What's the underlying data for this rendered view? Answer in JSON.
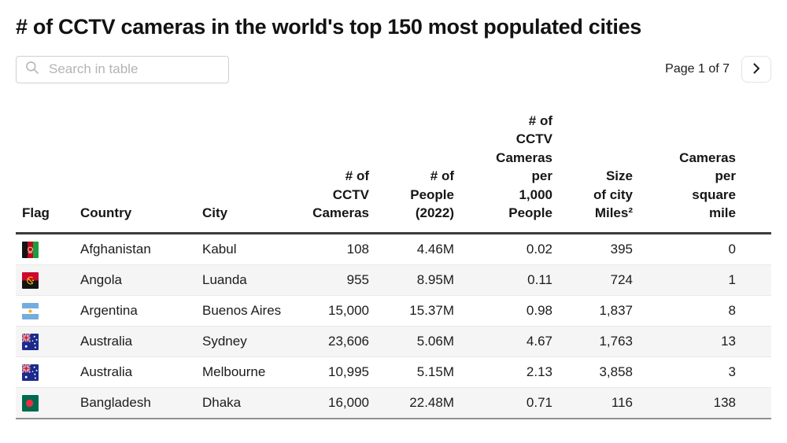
{
  "page": {
    "title": "# of CCTV cameras in the world's top 150 most populated cities",
    "search": {
      "placeholder": "Search in table",
      "value": ""
    },
    "pagination": {
      "label": "Page 1 of 7"
    }
  },
  "colors": {
    "row_stripe": "#f5f5f6",
    "header_rule": "#3b3b3b",
    "table_bottom_rule": "#8f8f8f"
  },
  "table": {
    "columns": [
      {
        "label": "Flag"
      },
      {
        "label": "Country"
      },
      {
        "label": "City"
      },
      {
        "label": "# of\nCCTV\nCameras"
      },
      {
        "label": "# of\nPeople\n(2022)"
      },
      {
        "label": "# of\nCCTV\nCameras\nper\n1,000\nPeople"
      },
      {
        "label": "Size\nof city\nMiles²"
      },
      {
        "label": "Cameras\nper\nsquare\nmile"
      }
    ],
    "rows": [
      {
        "flag": "afghanistan",
        "country": "Afghanistan",
        "city": "Kabul",
        "cameras": "108",
        "people": "4.46M",
        "per_1000": "0.02",
        "size_miles2": "395",
        "per_sq_mile": "0"
      },
      {
        "flag": "angola",
        "country": "Angola",
        "city": "Luanda",
        "cameras": "955",
        "people": "8.95M",
        "per_1000": "0.11",
        "size_miles2": "724",
        "per_sq_mile": "1"
      },
      {
        "flag": "argentina",
        "country": "Argentina",
        "city": "Buenos Aires",
        "cameras": "15,000",
        "people": "15.37M",
        "per_1000": "0.98",
        "size_miles2": "1,837",
        "per_sq_mile": "8"
      },
      {
        "flag": "australia",
        "country": "Australia",
        "city": "Sydney",
        "cameras": "23,606",
        "people": "5.06M",
        "per_1000": "4.67",
        "size_miles2": "1,763",
        "per_sq_mile": "13"
      },
      {
        "flag": "australia",
        "country": "Australia",
        "city": "Melbourne",
        "cameras": "10,995",
        "people": "5.15M",
        "per_1000": "2.13",
        "size_miles2": "3,858",
        "per_sq_mile": "3"
      },
      {
        "flag": "bangladesh",
        "country": "Bangladesh",
        "city": "Dhaka",
        "cameras": "16,000",
        "people": "22.48M",
        "per_1000": "0.71",
        "size_miles2": "116",
        "per_sq_mile": "138"
      }
    ]
  }
}
